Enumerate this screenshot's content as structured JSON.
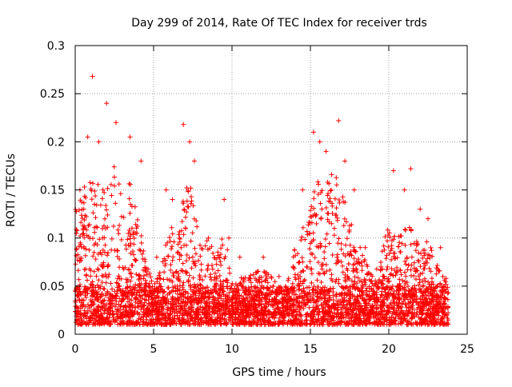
{
  "chart_data": {
    "type": "scatter",
    "title": "Day 299 of 2014, Rate Of TEC Index for receiver trds",
    "xlabel": "GPS time / hours",
    "ylabel": "ROTI / TECUs",
    "xlim": [
      0,
      25
    ],
    "ylim": [
      0,
      0.3
    ],
    "grid": true,
    "marker": "+",
    "marker_color": "#ff0000",
    "x_ticks": [
      {
        "value": 0,
        "label": "0"
      },
      {
        "value": 5,
        "label": "5"
      },
      {
        "value": 10,
        "label": "10"
      },
      {
        "value": 15,
        "label": "15"
      },
      {
        "value": 20,
        "label": "20"
      },
      {
        "value": 25,
        "label": "25"
      }
    ],
    "y_ticks": [
      {
        "value": 0,
        "label": "0"
      },
      {
        "value": 0.05,
        "label": "0.05"
      },
      {
        "value": 0.1,
        "label": "0.1"
      },
      {
        "value": 0.15,
        "label": "0.15"
      },
      {
        "value": 0.2,
        "label": "0.2"
      },
      {
        "value": 0.25,
        "label": "0.25"
      },
      {
        "value": 0.3,
        "label": "0.3"
      }
    ],
    "series": [
      {
        "name": "ROTI",
        "x_range": [
          0,
          23.8
        ],
        "points": [
          [
            1.1,
            0.268
          ],
          [
            2.0,
            0.24
          ],
          [
            2.6,
            0.22
          ],
          [
            1.5,
            0.2
          ],
          [
            0.8,
            0.205
          ],
          [
            3.5,
            0.205
          ],
          [
            4.2,
            0.18
          ],
          [
            0.3,
            0.15
          ],
          [
            6.9,
            0.218
          ],
          [
            7.3,
            0.2
          ],
          [
            7.6,
            0.18
          ],
          [
            5.8,
            0.15
          ],
          [
            6.2,
            0.14
          ],
          [
            9.5,
            0.14
          ],
          [
            15.2,
            0.21
          ],
          [
            15.6,
            0.2
          ],
          [
            16.0,
            0.19
          ],
          [
            16.8,
            0.222
          ],
          [
            17.2,
            0.18
          ],
          [
            17.8,
            0.15
          ],
          [
            14.5,
            0.15
          ],
          [
            20.3,
            0.17
          ],
          [
            21.0,
            0.15
          ],
          [
            21.4,
            0.172
          ],
          [
            22.0,
            0.13
          ],
          [
            22.5,
            0.12
          ],
          [
            23.3,
            0.09
          ],
          [
            10.5,
            0.08
          ],
          [
            12.0,
            0.08
          ],
          [
            13.0,
            0.06
          ],
          [
            18.5,
            0.09
          ],
          [
            19.5,
            0.07
          ],
          [
            8.5,
            0.1
          ],
          [
            9.8,
            0.1
          ],
          [
            5.2,
            0.08
          ]
        ]
      }
    ]
  }
}
